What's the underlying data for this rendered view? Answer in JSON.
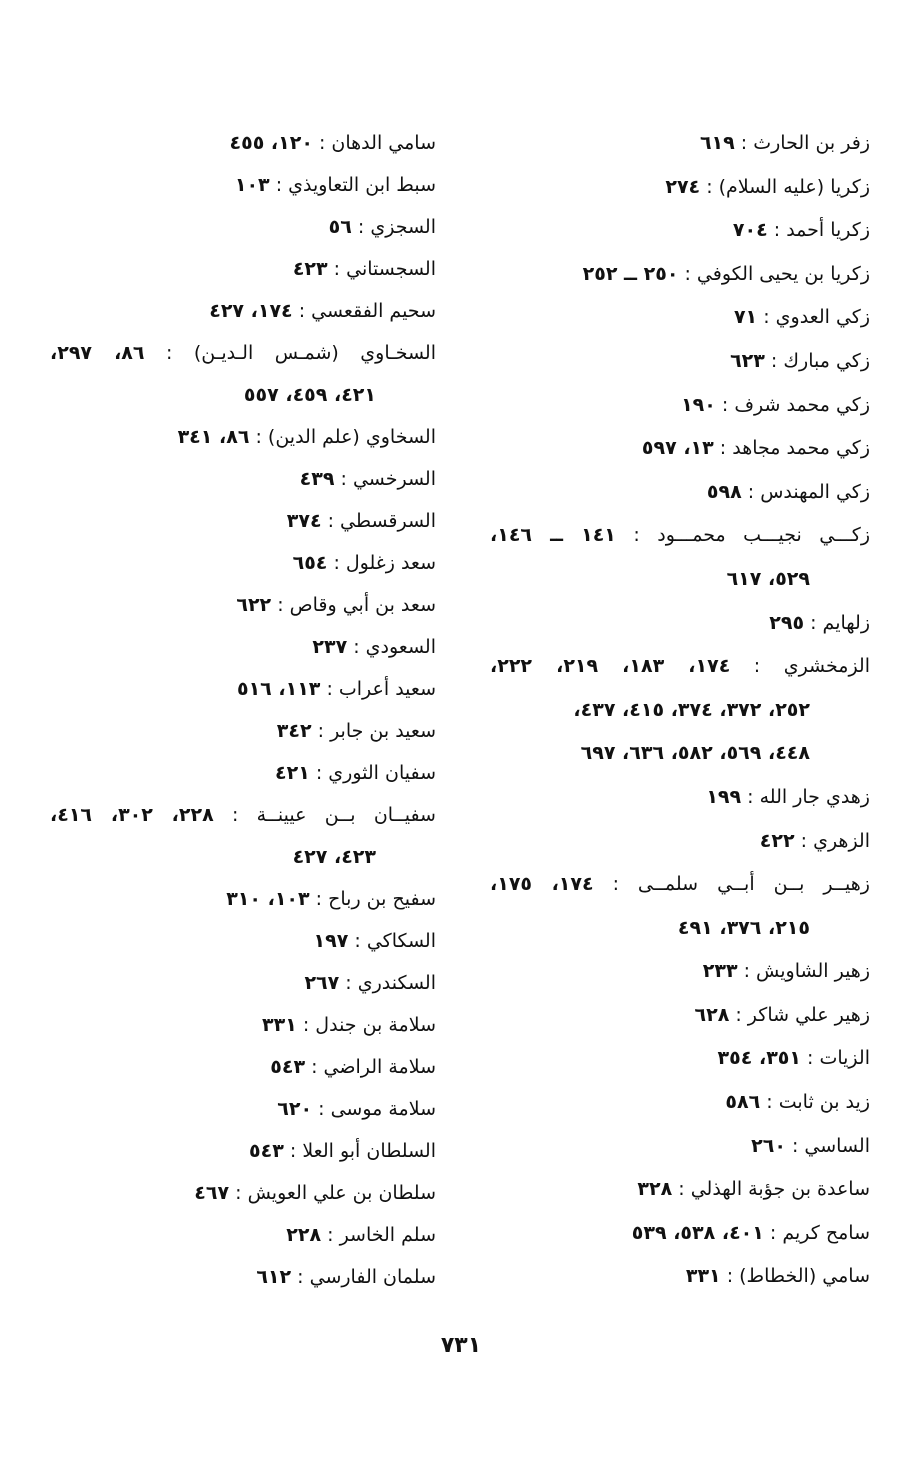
{
  "columns": {
    "right": [
      {
        "name": "زفر بن الحارث :",
        "pages": "٦١٩"
      },
      {
        "name": "زكريا (عليه السلام) :",
        "pages": "٢٧٤"
      },
      {
        "name": "زكريا أحمد :",
        "pages": "٧٠٤"
      },
      {
        "name": "زكريا بن يحيى الكوفي :",
        "pages": "٢٥٠ ــ ٢٥٢"
      },
      {
        "name": "زكي العدوي :",
        "pages": "٧١"
      },
      {
        "name": "زكي مبارك :",
        "pages": "٦٢٣"
      },
      {
        "name": "زكي محمد شرف :",
        "pages": "١٩٠"
      },
      {
        "name": "زكي محمد مجاهد :",
        "pages": "١٣، ٥٩٧"
      },
      {
        "name": "زكي المهندس :",
        "pages": "٥٩٨"
      },
      {
        "name": "زكـــي نجيـــب محمـــود :",
        "pages": "١٤١ ــ ١٤٦،",
        "full": true
      },
      {
        "pages": "٥٢٩، ٦١٧",
        "cont": true
      },
      {
        "name": "زلهايم :",
        "pages": "٢٩٥"
      },
      {
        "name": "الزمخشري :",
        "pages": "١٧٤، ١٨٣، ٢١٩، ٢٢٢،",
        "full": true
      },
      {
        "pages": "٢٥٢، ٣٧٢، ٣٧٤، ٤١٥، ٤٣٧،",
        "cont": true
      },
      {
        "pages": "٤٤٨، ٥٦٩، ٥٨٢، ٦٣٦، ٦٩٧",
        "cont": true
      },
      {
        "name": "زهدي جار الله :",
        "pages": "١٩٩"
      },
      {
        "name": "الزهري :",
        "pages": "٤٢٢"
      },
      {
        "name": "زهيــر بــن أبــي سلمــى :",
        "pages": "١٧٤، ١٧٥،",
        "full": true
      },
      {
        "pages": "٢١٥، ٣٧٦، ٤٩١",
        "cont": true
      },
      {
        "name": "زهير الشاويش :",
        "pages": "٢٣٣"
      },
      {
        "name": "زهير علي شاكر :",
        "pages": "٦٢٨"
      },
      {
        "name": "الزيات :",
        "pages": "٣٥١، ٣٥٤"
      },
      {
        "name": "زيد بن ثابت :",
        "pages": "٥٨٦"
      },
      {
        "name": "الساسي :",
        "pages": "٢٦٠"
      },
      {
        "name": "ساعدة بن جؤبة الهذلي :",
        "pages": "٣٢٨"
      },
      {
        "name": "سامح كريم :",
        "pages": "٤٠١، ٥٣٨، ٥٣٩"
      },
      {
        "name": "سامي (الخطاط) :",
        "pages": "٣٣١"
      }
    ],
    "left": [
      {
        "name": "سامي الدهان :",
        "pages": "١٢٠، ٤٥٥"
      },
      {
        "name": "سبط ابن التعاويذي :",
        "pages": "١٠٣"
      },
      {
        "name": "السجزي :",
        "pages": "٥٦"
      },
      {
        "name": "السجستاني :",
        "pages": "٤٢٣"
      },
      {
        "name": "سحيم الفقعسي :",
        "pages": "١٧٤، ٤٢٧"
      },
      {
        "name": "السخـاوي (شمـس الـديـن) :",
        "pages": "٨٦، ٢٩٧،",
        "full": true
      },
      {
        "pages": "٤٢١، ٤٥٩، ٥٥٧",
        "cont": true
      },
      {
        "name": "السخاوي (علم الدين) :",
        "pages": "٨٦، ٣٤١"
      },
      {
        "name": "السرخسي :",
        "pages": "٤٣٩"
      },
      {
        "name": "السرقسطي :",
        "pages": "٣٧٤"
      },
      {
        "name": "سعد زغلول :",
        "pages": "٦٥٤"
      },
      {
        "name": "سعد بن أبي وقاص :",
        "pages": "٦٢٢"
      },
      {
        "name": "السعودي :",
        "pages": "٢٣٧"
      },
      {
        "name": "سعيد أعراب :",
        "pages": "١١٣، ٥١٦"
      },
      {
        "name": "سعيد بن جابر :",
        "pages": "٣٤٢"
      },
      {
        "name": "سفيان الثوري :",
        "pages": "٤٢١"
      },
      {
        "name": "سفيــان بــن عيينــة :",
        "pages": "٢٢٨، ٣٠٢، ٤١٦،",
        "full": true
      },
      {
        "pages": "٤٢٣، ٤٢٧",
        "cont": true
      },
      {
        "name": "سفيح بن رباح :",
        "pages": "١٠٣، ٣١٠"
      },
      {
        "name": "السكاكي :",
        "pages": "١٩٧"
      },
      {
        "name": "السكندري :",
        "pages": "٢٦٧"
      },
      {
        "name": "سلامة بن جندل :",
        "pages": "٣٣١"
      },
      {
        "name": "سلامة الراضي :",
        "pages": "٥٤٣"
      },
      {
        "name": "سلامة موسى :",
        "pages": "٦٢٠"
      },
      {
        "name": "السلطان أبو العلا :",
        "pages": "٥٤٣"
      },
      {
        "name": "سلطان بن علي العويش :",
        "pages": "٤٦٧"
      },
      {
        "name": "سلم الخاسر :",
        "pages": "٢٢٨"
      },
      {
        "name": "سلمان الفارسي :",
        "pages": "٦١٢"
      }
    ]
  },
  "page_number": "٧٣١"
}
